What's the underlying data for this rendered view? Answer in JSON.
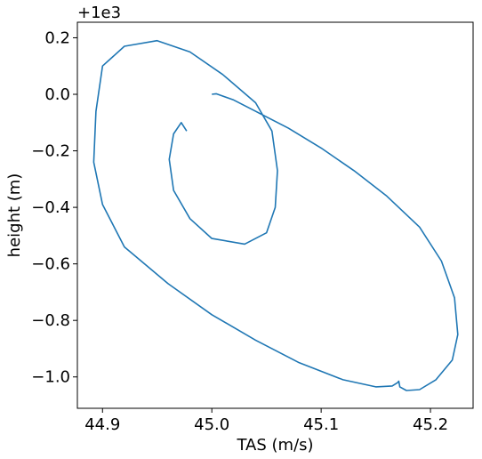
{
  "chart_data": {
    "type": "line",
    "title": "",
    "xlabel": "TAS (m/s)",
    "ylabel": "height (m)",
    "y_offset_label": "+1e3",
    "xlim": [
      44.877,
      45.239
    ],
    "ylim": [
      -1.111,
      0.255
    ],
    "xticks": [
      {
        "value": 44.9,
        "label": "44.9"
      },
      {
        "value": 45.0,
        "label": "45.0"
      },
      {
        "value": 45.1,
        "label": "45.1"
      },
      {
        "value": 45.2,
        "label": "45.2"
      }
    ],
    "yticks": [
      {
        "value": 0.2,
        "label": "0.2"
      },
      {
        "value": 0.0,
        "label": "0.0"
      },
      {
        "value": -0.2,
        "label": "−0.2"
      },
      {
        "value": -0.4,
        "label": "−0.4"
      },
      {
        "value": -0.6,
        "label": "−0.6"
      },
      {
        "value": -0.8,
        "label": "−0.8"
      },
      {
        "value": -1.0,
        "label": "−1.0"
      }
    ],
    "grid": false,
    "legend": "none",
    "series": [
      {
        "color": "#1f77b4",
        "x": [
          45.0,
          45.004,
          45.02,
          45.04,
          45.07,
          45.1,
          45.13,
          45.16,
          45.19,
          45.21,
          45.222,
          45.225,
          45.22,
          45.205,
          45.19,
          45.178,
          45.172,
          45.171,
          45.17,
          45.165,
          45.15,
          45.12,
          45.08,
          45.04,
          45.0,
          44.96,
          44.92,
          44.9,
          44.892,
          44.894,
          44.9,
          44.92,
          44.95,
          44.98,
          45.01,
          45.04,
          45.055,
          45.06,
          45.058,
          45.05,
          45.03,
          45.0,
          44.98,
          44.965,
          44.961,
          44.965,
          44.972,
          44.977
        ],
        "y": [
          0.0,
          0.002,
          -0.02,
          -0.06,
          -0.12,
          -0.19,
          -0.27,
          -0.36,
          -0.47,
          -0.59,
          -0.72,
          -0.85,
          -0.94,
          -1.01,
          -1.045,
          -1.048,
          -1.035,
          -1.015,
          -1.02,
          -1.032,
          -1.035,
          -1.01,
          -0.95,
          -0.87,
          -0.78,
          -0.67,
          -0.54,
          -0.39,
          -0.24,
          -0.06,
          0.1,
          0.17,
          0.19,
          0.15,
          0.07,
          -0.03,
          -0.13,
          -0.27,
          -0.4,
          -0.49,
          -0.53,
          -0.51,
          -0.44,
          -0.34,
          -0.23,
          -0.14,
          -0.1,
          -0.13
        ]
      }
    ]
  }
}
